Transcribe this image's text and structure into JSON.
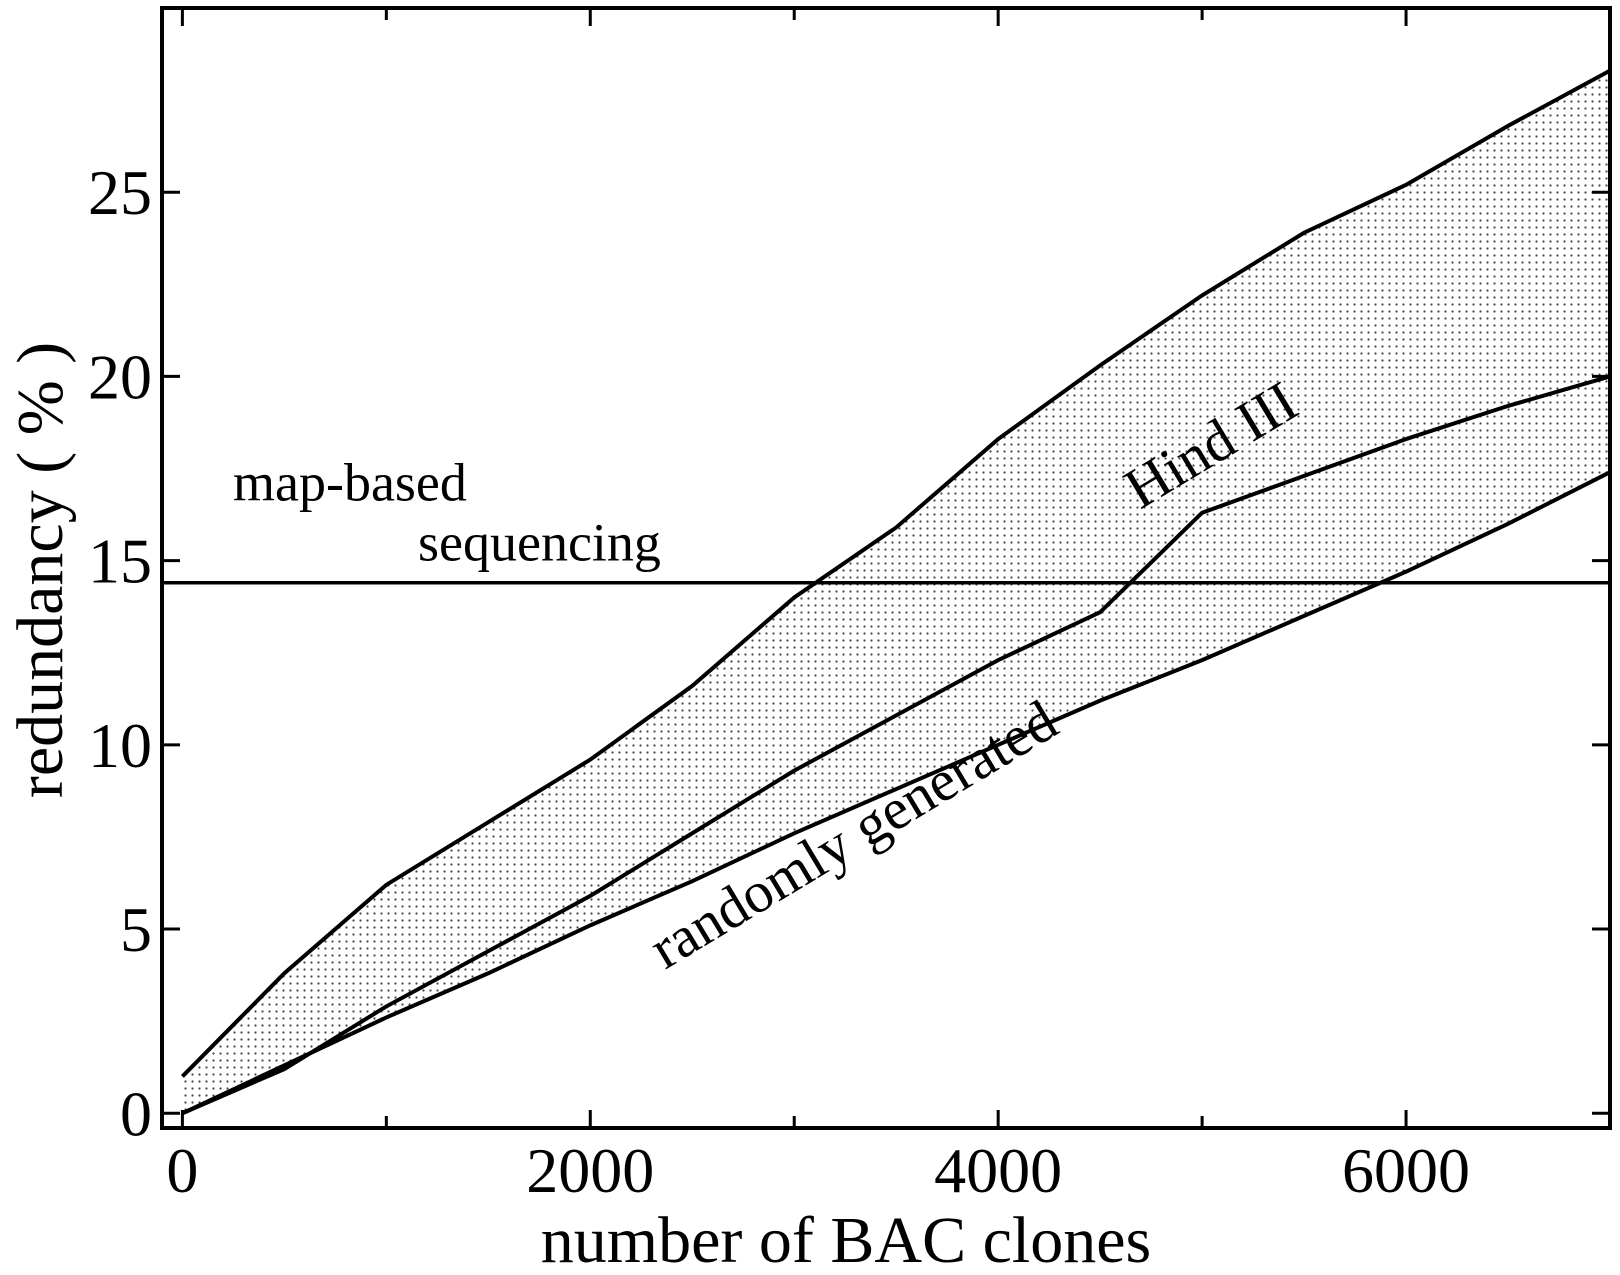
{
  "chart_data": {
    "type": "line",
    "xlabel": "number of BAC clones",
    "ylabel": "redundancy ( % )",
    "x": [
      0,
      500,
      1000,
      1500,
      2000,
      2500,
      3000,
      3500,
      4000,
      4500,
      5000,
      5500,
      6000,
      6500,
      7000
    ],
    "series": [
      {
        "color": "#000000",
        "values": [
          1.0,
          3.8,
          6.2,
          7.9,
          9.6,
          11.6,
          14.0,
          15.9,
          18.3,
          20.3,
          22.2,
          23.9,
          25.2,
          26.8,
          28.3
        ]
      },
      {
        "name": "Hind III",
        "color": "#000000",
        "values": [
          0,
          1.2,
          2.9,
          4.4,
          5.9,
          7.6,
          9.3,
          10.8,
          12.3,
          13.6,
          16.3,
          17.3,
          18.3,
          19.2,
          20.0
        ]
      },
      {
        "name": "randomly generated",
        "color": "#000000",
        "values": [
          0,
          1.3,
          2.6,
          3.8,
          5.1,
          6.3,
          7.6,
          8.8,
          10.0,
          11.2,
          12.3,
          13.5,
          14.7,
          16.0,
          17.4
        ]
      }
    ],
    "hline": {
      "value": 14.4,
      "label": [
        "map-based",
        "sequencing"
      ]
    },
    "xlim": [
      -100,
      7000
    ],
    "ylim": [
      -0.4,
      30
    ],
    "xticks": [
      0,
      2000,
      4000,
      6000
    ],
    "xminorticks": [
      1000,
      3000,
      5000
    ],
    "yticks": [
      0,
      5,
      10,
      15,
      20,
      25
    ]
  }
}
